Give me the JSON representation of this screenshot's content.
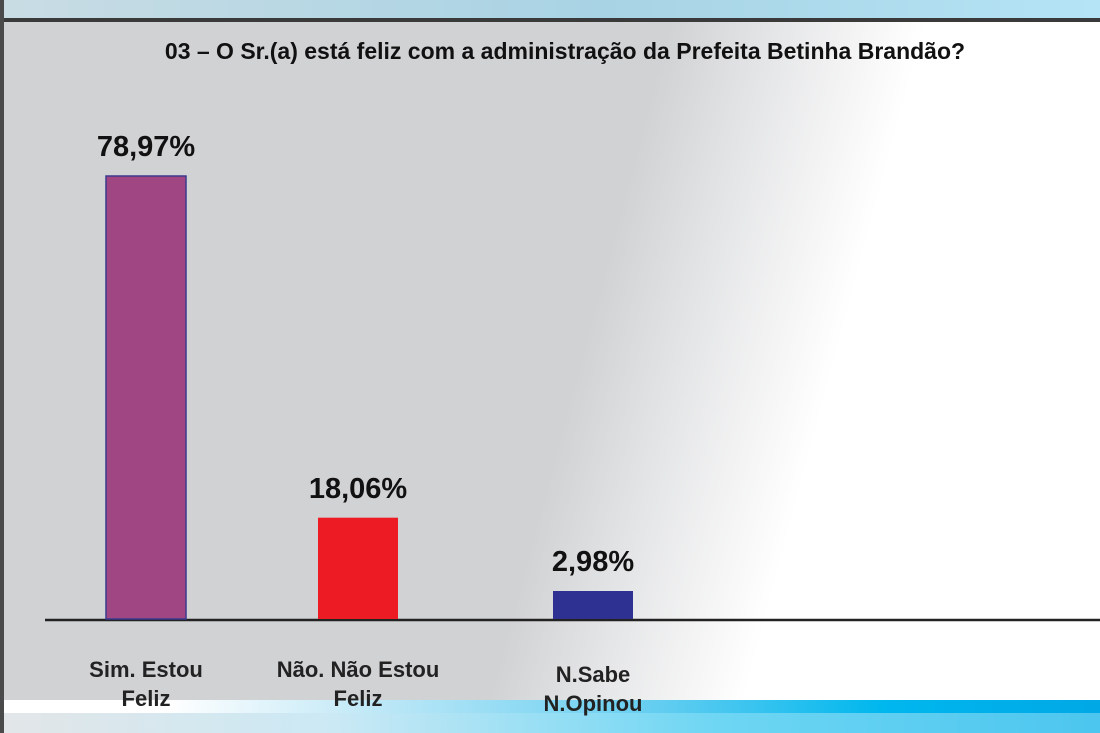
{
  "chart_data": {
    "type": "bar",
    "title": "03 – O Sr.(a) está feliz com a administração da Prefeita Betinha Brandão?",
    "categories": [
      [
        "Sim. Estou",
        "Feliz"
      ],
      [
        "Não. Não Estou",
        "Feliz"
      ],
      [
        "N.Sabe",
        "N.Opinou"
      ]
    ],
    "values": [
      78.97,
      18.06,
      2.98
    ],
    "value_labels": [
      "78,97%",
      "18,06%",
      "2,98%"
    ],
    "colors": [
      "#a04682",
      "#ed1c24",
      "#2e3192"
    ],
    "xlabel": "",
    "ylabel": "",
    "ylim": [
      0,
      100
    ],
    "grid": false,
    "legend": "none"
  }
}
